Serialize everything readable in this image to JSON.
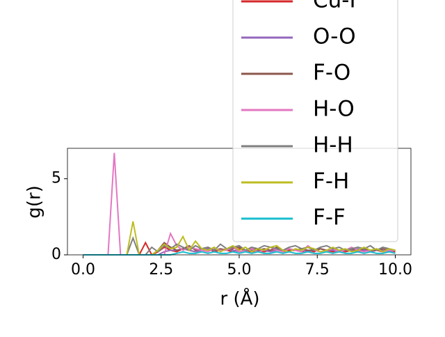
{
  "chart_data": {
    "type": "line",
    "xlabel": "r (Å)",
    "ylabel": "g(r)",
    "x": [
      0,
      0.2,
      0.4,
      0.6,
      0.8,
      1,
      1.2,
      1.4,
      1.6,
      1.8,
      2,
      2.2,
      2.4,
      2.6,
      2.8,
      3,
      3.2,
      3.4,
      3.6,
      3.8,
      4,
      4.2,
      4.4,
      4.6,
      4.8,
      5,
      5.2,
      5.4,
      5.6,
      5.8,
      6,
      6.2,
      6.4,
      6.6,
      6.8,
      7,
      7.2,
      7.4,
      7.6,
      7.8,
      8,
      8.2,
      8.4,
      8.6,
      8.8,
      9,
      9.2,
      9.4,
      9.6,
      9.8,
      10
    ],
    "series": [
      {
        "name": "Cu-F",
        "color": "#d62728",
        "values": [
          0,
          0,
          0,
          0,
          0,
          0,
          0,
          0,
          0,
          0,
          0.8,
          0,
          0.2,
          0.5,
          0.3,
          0.2,
          0.4,
          0.3,
          0.2,
          0.3,
          0.4,
          0.2,
          0.3,
          0.3,
          0.2,
          0.4,
          0.3,
          0.2,
          0.3,
          0.2,
          0.3,
          0.4,
          0.2,
          0.3,
          0.3,
          0.2,
          0.3,
          0.2,
          0.4,
          0.3,
          0.2,
          0.3,
          0.2,
          0.3,
          0.2,
          0.3,
          0.2,
          0.3,
          0.2,
          0.3,
          0.2
        ]
      },
      {
        "name": "O-O",
        "color": "#9467bd",
        "values": [
          0,
          0,
          0,
          0,
          0,
          0,
          0,
          0,
          0,
          0,
          0,
          0,
          0,
          0.2,
          0.3,
          0.3,
          0.4,
          0.3,
          0.2,
          0.3,
          0.4,
          0.3,
          0.3,
          0.4,
          0.3,
          0.2,
          0.3,
          0.3,
          0.4,
          0.3,
          0.2,
          0.3,
          0.3,
          0.4,
          0.3,
          0.3,
          0.2,
          0.3,
          0.4,
          0.3,
          0.3,
          0.2,
          0.3,
          0.3,
          0.4,
          0.3,
          0.2,
          0.3,
          0.3,
          0.2,
          0.3
        ]
      },
      {
        "name": "F-O",
        "color": "#8c564b",
        "values": [
          0,
          0,
          0,
          0,
          0,
          0,
          0,
          0,
          0,
          0,
          0,
          0,
          0.3,
          0.8,
          0.5,
          0.3,
          0.4,
          0.6,
          0.3,
          0.4,
          0.5,
          0.3,
          0.4,
          0.3,
          0.4,
          0.5,
          0.3,
          0.4,
          0.3,
          0.4,
          0.3,
          0.5,
          0.3,
          0.4,
          0.3,
          0.4,
          0.3,
          0.3,
          0.4,
          0.3,
          0.4,
          0.3,
          0.3,
          0.4,
          0.3,
          0.4,
          0.3,
          0.3,
          0.4,
          0.3,
          0.3
        ]
      },
      {
        "name": "H-O",
        "color": "#e377c2",
        "values": [
          0,
          0,
          0,
          0,
          0,
          6.7,
          0,
          0,
          0,
          0,
          0,
          0,
          0,
          0,
          1.4,
          0.6,
          0.3,
          0.5,
          0.4,
          0.3,
          0.2,
          0.4,
          0.3,
          0.3,
          0.5,
          0.2,
          0.3,
          0.4,
          0.2,
          0.3,
          0.5,
          0.3,
          0.2,
          0.4,
          0.3,
          0.2,
          0.6,
          0.3,
          0.2,
          0.3,
          0.4,
          0.2,
          0.3,
          0.5,
          0.3,
          0.2,
          0.3,
          0.4,
          0.2,
          0.3,
          0.3
        ]
      },
      {
        "name": "H-H",
        "color": "#7f7f7f",
        "values": [
          0,
          0,
          0,
          0,
          0,
          0,
          0,
          0,
          1.1,
          0,
          0,
          0.5,
          0.2,
          0.6,
          0.4,
          0.7,
          0.5,
          0.3,
          0.6,
          0.4,
          0.5,
          0.3,
          0.7,
          0.4,
          0.5,
          0.6,
          0.3,
          0.5,
          0.4,
          0.6,
          0.5,
          0.4,
          0.3,
          0.5,
          0.6,
          0.4,
          0.5,
          0.3,
          0.5,
          0.6,
          0.4,
          0.5,
          0.3,
          0.4,
          0.5,
          0.4,
          0.6,
          0.3,
          0.5,
          0.4,
          0.3
        ]
      },
      {
        "name": "F-H",
        "color": "#bcbd22",
        "values": [
          0,
          0,
          0,
          0,
          0,
          0,
          0,
          0,
          2.2,
          0,
          0,
          0,
          0.3,
          0.7,
          0.4,
          0.5,
          1.2,
          0.3,
          0.9,
          0.4,
          0.3,
          0.5,
          0.2,
          0.4,
          0.6,
          0.3,
          0.5,
          0.2,
          0.4,
          0.3,
          0.5,
          0.6,
          0.3,
          0.2,
          0.4,
          0.3,
          0.5,
          0.4,
          0.2,
          0.3,
          0.5,
          0.3,
          0.4,
          0.2,
          0.3,
          0.5,
          0.3,
          0.4,
          0.2,
          0.4,
          0.3
        ]
      },
      {
        "name": "F-F",
        "color": "#17becf",
        "values": [
          0,
          0,
          0,
          0,
          0,
          0,
          0,
          0,
          0,
          0,
          0,
          0,
          0,
          0,
          0,
          0.1,
          0.2,
          0.1,
          0.1,
          0.2,
          0.1,
          0.2,
          0.1,
          0.1,
          0.2,
          0.1,
          0.2,
          0.1,
          0.2,
          0.1,
          0.1,
          0.2,
          0.1,
          0.2,
          0.1,
          0.1,
          0.2,
          0.1,
          0.1,
          0.2,
          0.1,
          0.2,
          0.1,
          0.1,
          0.2,
          0.1,
          0.2,
          0.1,
          0.1,
          0.2,
          0.1
        ]
      }
    ],
    "xlim": [
      -0.5,
      10.5
    ],
    "ylim": [
      0,
      7
    ],
    "xticks": [
      {
        "value": 0,
        "label": "0.0"
      },
      2.5,
      {
        "value": 5,
        "label": "5.0"
      },
      7.5,
      {
        "value": 10,
        "label": "10.0"
      }
    ],
    "yticks": [
      0,
      5
    ]
  }
}
